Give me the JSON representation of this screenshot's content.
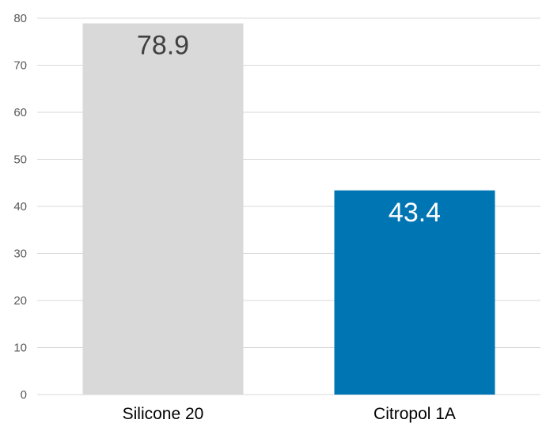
{
  "chart_data": {
    "type": "bar",
    "title": "",
    "xlabel": "",
    "ylabel": "",
    "categories": [
      "Silicone 20",
      "Citropol 1A"
    ],
    "values": [
      78.9,
      43.4
    ],
    "data_labels": [
      "78.9",
      "43.4"
    ],
    "bar_colors": [
      "#d9d9d9",
      "#0075b4"
    ],
    "data_label_colors": [
      "#404040",
      "#ffffff"
    ],
    "ylim": [
      0,
      80
    ],
    "yticks": [
      0,
      10,
      20,
      30,
      40,
      50,
      60,
      70,
      80
    ],
    "ytick_labels": [
      "0",
      "10",
      "20",
      "30",
      "40",
      "50",
      "60",
      "70",
      "80"
    ],
    "grid": true,
    "gridline_color": "#d9d9d9",
    "legend": "none"
  }
}
